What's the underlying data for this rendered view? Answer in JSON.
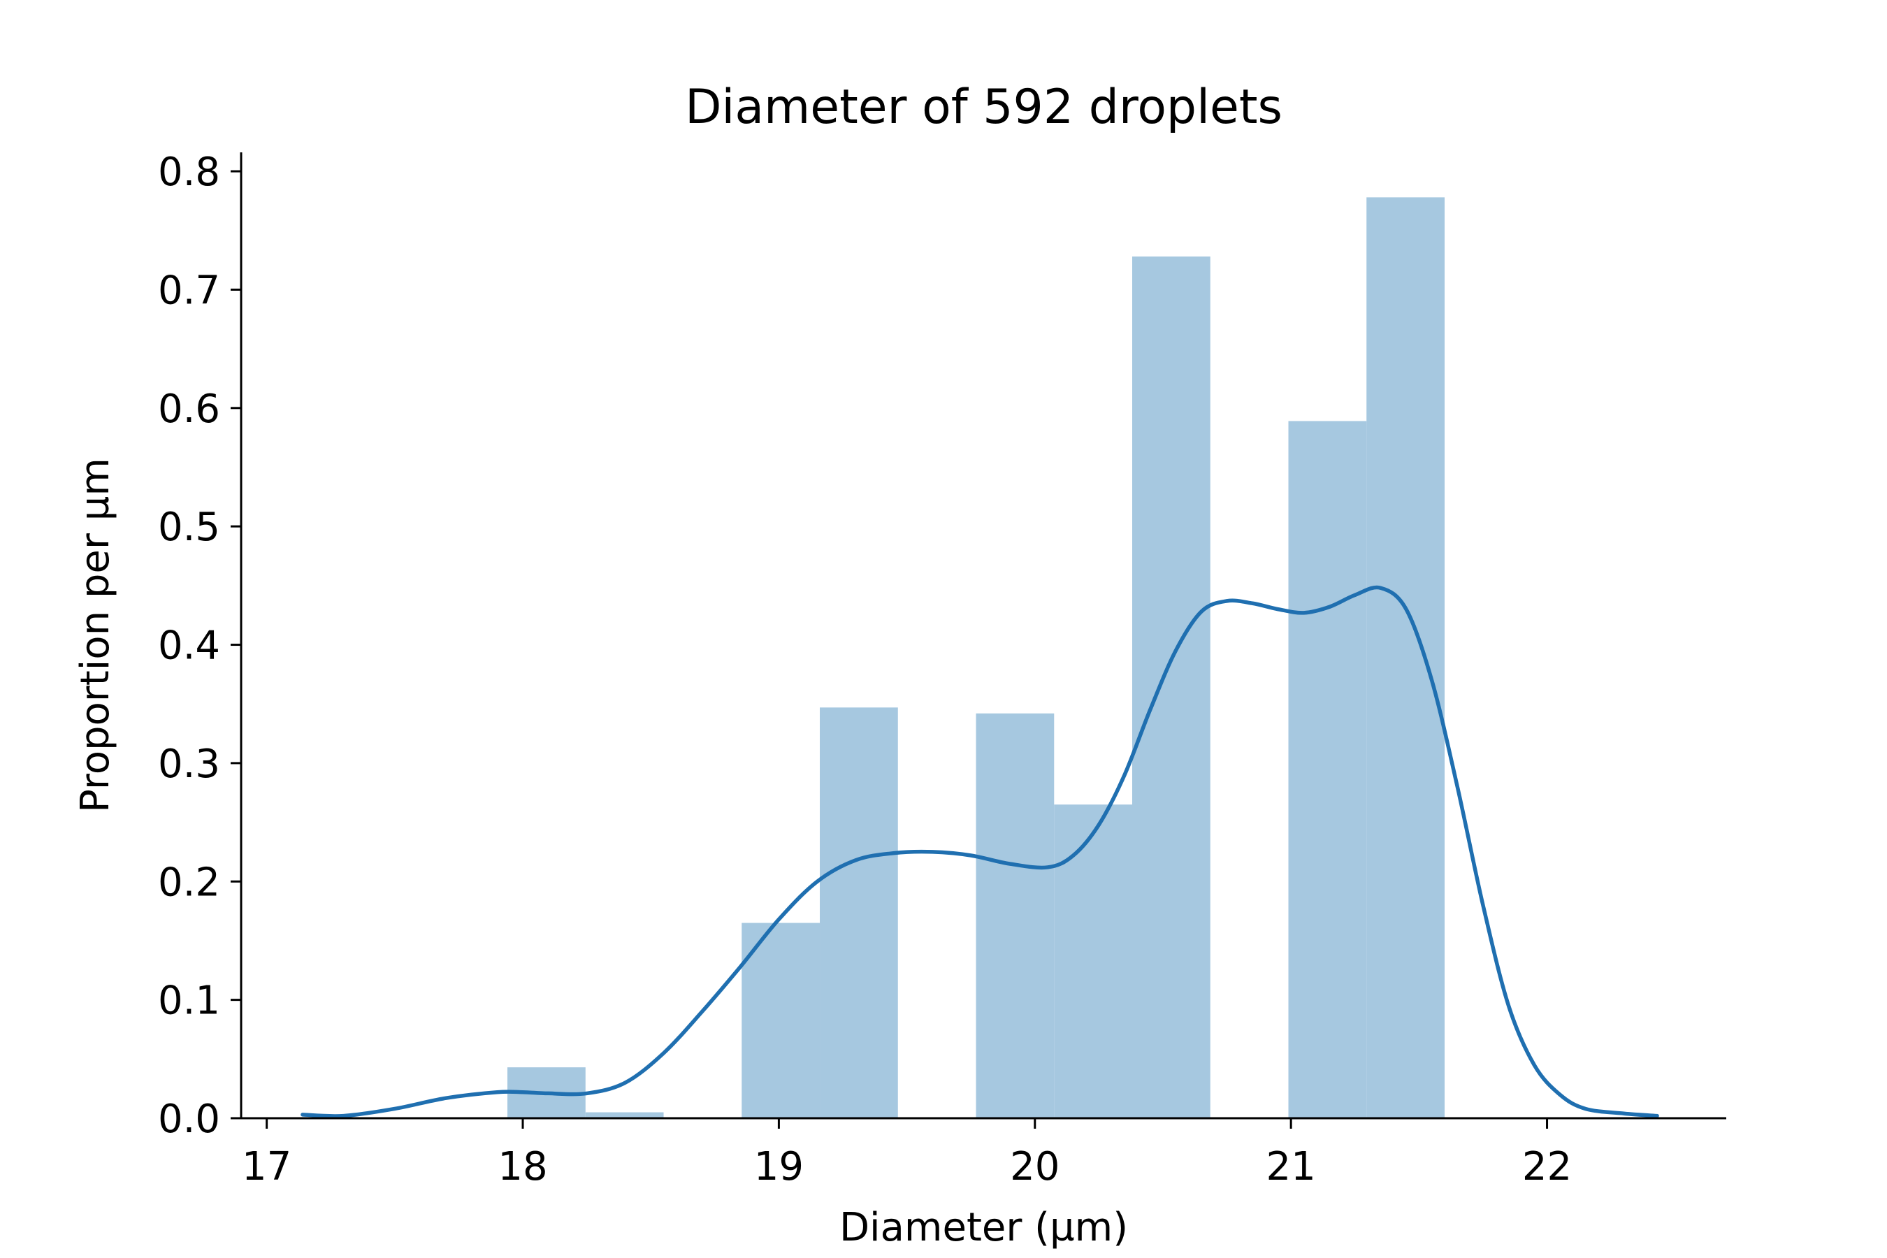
{
  "colors": {
    "bar_fill": "#a6c8e0",
    "kde_line": "#1f6fb0",
    "axis": "#000000",
    "background": "#ffffff"
  },
  "chart_data": {
    "type": "bar",
    "title": "Diameter of 592 droplets",
    "xlabel": "Diameter (µm)",
    "ylabel": "Proportion per µm",
    "xlim": [
      16.9,
      22.7
    ],
    "ylim": [
      0,
      0.816
    ],
    "grid": false,
    "legend": "none",
    "x_ticks": [
      17,
      18,
      19,
      20,
      21,
      22
    ],
    "x_tick_labels": [
      "17",
      "18",
      "19",
      "20",
      "21",
      "22"
    ],
    "y_ticks": [
      0.0,
      0.1,
      0.2,
      0.3,
      0.4,
      0.5,
      0.6,
      0.7,
      0.8
    ],
    "y_tick_labels": [
      "0.0",
      "0.1",
      "0.2",
      "0.3",
      "0.4",
      "0.5",
      "0.6",
      "0.7",
      "0.8"
    ],
    "bin_width": 0.305,
    "histogram": [
      {
        "x0": 17.94,
        "x1": 18.245,
        "value": 0.043
      },
      {
        "x0": 18.245,
        "x1": 18.55,
        "value": 0.005
      },
      {
        "x0": 18.55,
        "x1": 18.855,
        "value": 0.0
      },
      {
        "x0": 18.855,
        "x1": 19.16,
        "value": 0.165
      },
      {
        "x0": 19.16,
        "x1": 19.465,
        "value": 0.347
      },
      {
        "x0": 19.465,
        "x1": 19.77,
        "value": 0.0
      },
      {
        "x0": 19.77,
        "x1": 20.075,
        "value": 0.342
      },
      {
        "x0": 20.075,
        "x1": 20.38,
        "value": 0.265
      },
      {
        "x0": 20.38,
        "x1": 20.685,
        "value": 0.728
      },
      {
        "x0": 20.685,
        "x1": 20.99,
        "value": 0.0
      },
      {
        "x0": 20.99,
        "x1": 21.295,
        "value": 0.589
      },
      {
        "x0": 21.295,
        "x1": 21.6,
        "value": 0.778
      }
    ],
    "kde": {
      "x": [
        17.14,
        17.3,
        17.5,
        17.7,
        17.9,
        18.0,
        18.1,
        18.25,
        18.4,
        18.55,
        18.7,
        18.85,
        19.0,
        19.15,
        19.3,
        19.45,
        19.6,
        19.75,
        19.9,
        20.05,
        20.15,
        20.25,
        20.35,
        20.45,
        20.55,
        20.65,
        20.75,
        20.85,
        20.95,
        21.05,
        21.15,
        21.25,
        21.35,
        21.45,
        21.55,
        21.65,
        21.75,
        21.85,
        21.95,
        22.05,
        22.15,
        22.3,
        22.43
      ],
      "y": [
        0.003,
        0.002,
        0.008,
        0.017,
        0.022,
        0.022,
        0.021,
        0.021,
        0.03,
        0.055,
        0.09,
        0.128,
        0.168,
        0.2,
        0.218,
        0.224,
        0.225,
        0.222,
        0.215,
        0.212,
        0.222,
        0.248,
        0.29,
        0.345,
        0.395,
        0.428,
        0.437,
        0.435,
        0.43,
        0.427,
        0.432,
        0.442,
        0.448,
        0.43,
        0.37,
        0.28,
        0.18,
        0.095,
        0.045,
        0.02,
        0.008,
        0.004,
        0.002
      ]
    }
  }
}
